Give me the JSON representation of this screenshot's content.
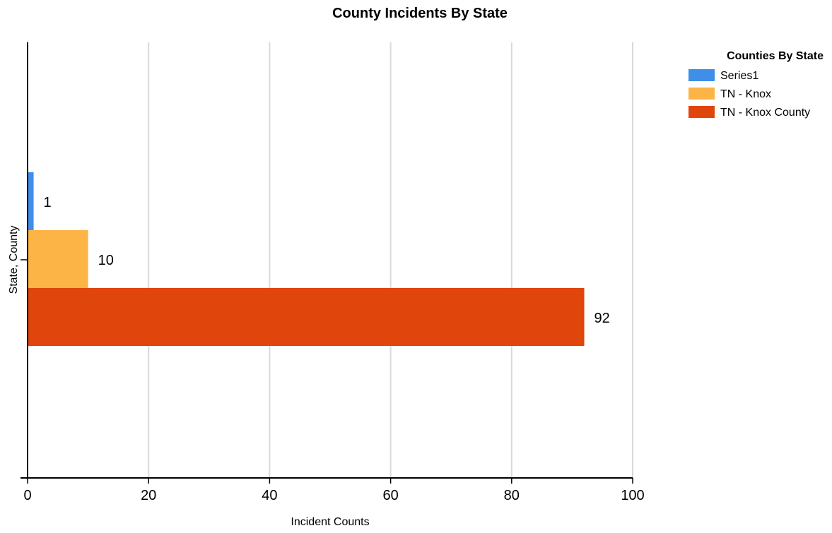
{
  "chart_data": {
    "type": "bar",
    "orientation": "horizontal",
    "title": "County Incidents By State",
    "xlabel": "Incident Counts",
    "ylabel": "State, County",
    "xlim": [
      0,
      100
    ],
    "x_ticks": [
      0,
      20,
      40,
      60,
      80,
      100
    ],
    "grid": "vertical",
    "legend": {
      "title": "Counties By State",
      "placement": "top-right"
    },
    "categories": [
      ""
    ],
    "series": [
      {
        "name": "Series1",
        "values": [
          1
        ],
        "color": "#3f8ee8"
      },
      {
        "name": "TN - Knox",
        "values": [
          10
        ],
        "color": "#fbb445"
      },
      {
        "name": "TN - Knox County",
        "values": [
          92
        ],
        "color": "#e0450c"
      }
    ]
  }
}
